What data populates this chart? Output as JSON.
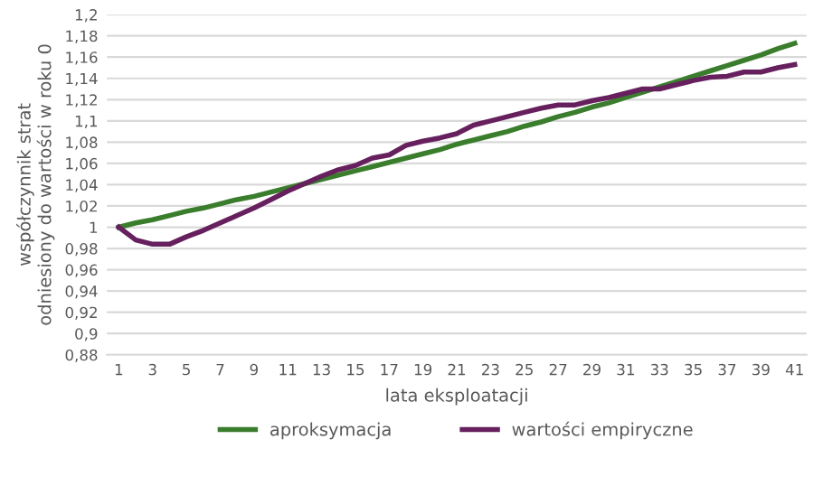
{
  "chart_data": {
    "type": "line",
    "xlabel": "lata eksploatacji",
    "ylabel": "współczynnik strat\nodniesiony do wartości w roku 0",
    "categories": [
      "1",
      null,
      "3",
      null,
      "5",
      null,
      "7",
      null,
      "9",
      null,
      "11",
      null,
      "13",
      null,
      "15",
      null,
      "17",
      null,
      "19",
      null,
      "21",
      null,
      "23",
      null,
      "25",
      null,
      "27",
      null,
      "29",
      null,
      "31",
      null,
      "33",
      null,
      "35",
      null,
      "37",
      null,
      "39",
      null,
      "41"
    ],
    "series": [
      {
        "name": "aproksymacja",
        "color": "#3a7d2c",
        "values": [
          1.0,
          1.004,
          1.007,
          1.011,
          1.015,
          1.018,
          1.022,
          1.026,
          1.029,
          1.033,
          1.037,
          1.041,
          1.045,
          1.049,
          1.053,
          1.057,
          1.061,
          1.065,
          1.069,
          1.073,
          1.078,
          1.082,
          1.086,
          1.09,
          1.095,
          1.099,
          1.104,
          1.108,
          1.113,
          1.117,
          1.122,
          1.127,
          1.132,
          1.137,
          1.142,
          1.147,
          1.152,
          1.157,
          1.162,
          1.168,
          1.173
        ]
      },
      {
        "name": "wartości empiryczne",
        "color": "#66205e",
        "values": [
          1.0,
          0.988,
          0.984,
          0.984,
          0.991,
          0.997,
          1.004,
          1.011,
          1.018,
          1.026,
          1.034,
          1.041,
          1.048,
          1.054,
          1.058,
          1.065,
          1.068,
          1.077,
          1.081,
          1.084,
          1.088,
          1.096,
          1.1,
          1.104,
          1.108,
          1.112,
          1.115,
          1.115,
          1.119,
          1.122,
          1.126,
          1.13,
          1.13,
          1.134,
          1.138,
          1.141,
          1.142,
          1.146,
          1.146,
          1.15,
          1.153
        ]
      }
    ],
    "ylim": [
      0.88,
      1.2
    ],
    "yticks": [
      {
        "value": 0.88,
        "label": "0,88"
      },
      {
        "value": 0.9,
        "label": "0,9"
      },
      {
        "value": 0.92,
        "label": "0,92"
      },
      {
        "value": 0.94,
        "label": "0,94"
      },
      {
        "value": 0.96,
        "label": "0,96"
      },
      {
        "value": 0.98,
        "label": "0,98"
      },
      {
        "value": 1,
        "label": "1"
      },
      {
        "value": 1.02,
        "label": "1,02"
      },
      {
        "value": 1.04,
        "label": "1,04"
      },
      {
        "value": 1.06,
        "label": "1,06"
      },
      {
        "value": 1.08,
        "label": "1,08"
      },
      {
        "value": 1.1,
        "label": "1,1"
      },
      {
        "value": 1.12,
        "label": "1,12"
      },
      {
        "value": 1.14,
        "label": "1,14"
      },
      {
        "value": 1.16,
        "label": "1,16"
      },
      {
        "value": 1.18,
        "label": "1,18"
      },
      {
        "value": 1.2,
        "label": "1,2"
      }
    ],
    "grid": "y",
    "legend": "bottom",
    "marker": "none",
    "line_style": "solid"
  }
}
